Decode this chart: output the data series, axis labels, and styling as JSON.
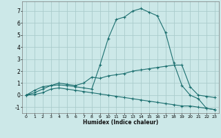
{
  "title": "",
  "xlabel": "Humidex (Indice chaleur)",
  "background_color": "#cce8e8",
  "grid_color": "#aacccc",
  "line_color": "#1a6e6e",
  "xlim": [
    -0.5,
    23.5
  ],
  "ylim": [
    -1.5,
    7.8
  ],
  "xticks": [
    0,
    1,
    2,
    3,
    4,
    5,
    6,
    7,
    8,
    9,
    10,
    11,
    12,
    13,
    14,
    15,
    16,
    17,
    18,
    19,
    20,
    21,
    22,
    23
  ],
  "yticks": [
    -1,
    0,
    1,
    2,
    3,
    4,
    5,
    6,
    7
  ],
  "lines": [
    {
      "x": [
        0,
        1,
        2,
        3,
        4,
        5,
        6,
        7,
        8,
        9,
        10,
        11,
        12,
        13,
        14,
        15,
        16,
        17,
        18,
        19,
        20,
        21,
        22,
        23
      ],
      "y": [
        0,
        0.4,
        0.7,
        0.8,
        0.85,
        0.8,
        0.7,
        0.6,
        0.5,
        2.5,
        4.7,
        6.3,
        6.5,
        7.0,
        7.2,
        6.9,
        6.6,
        5.2,
        2.7,
        0.8,
        0.0,
        -0.3,
        -1.1,
        -1.2
      ]
    },
    {
      "x": [
        0,
        1,
        2,
        3,
        4,
        5,
        6,
        7,
        8,
        9,
        10,
        11,
        12,
        13,
        14,
        15,
        16,
        17,
        18,
        19,
        20,
        21,
        22,
        23
      ],
      "y": [
        0,
        0.2,
        0.5,
        0.8,
        1.0,
        0.9,
        0.8,
        1.0,
        1.5,
        1.4,
        1.6,
        1.7,
        1.8,
        2.0,
        2.1,
        2.2,
        2.3,
        2.4,
        2.5,
        2.5,
        0.7,
        0.0,
        -0.1,
        -0.2
      ]
    },
    {
      "x": [
        0,
        1,
        2,
        3,
        4,
        5,
        6,
        7,
        8,
        9,
        10,
        11,
        12,
        13,
        14,
        15,
        16,
        17,
        18,
        19,
        20,
        21,
        22,
        23
      ],
      "y": [
        0,
        0.05,
        0.2,
        0.5,
        0.6,
        0.5,
        0.4,
        0.3,
        0.2,
        0.1,
        0.0,
        -0.1,
        -0.2,
        -0.3,
        -0.4,
        -0.5,
        -0.6,
        -0.7,
        -0.8,
        -0.9,
        -0.9,
        -1.0,
        -1.1,
        -1.2
      ]
    }
  ]
}
